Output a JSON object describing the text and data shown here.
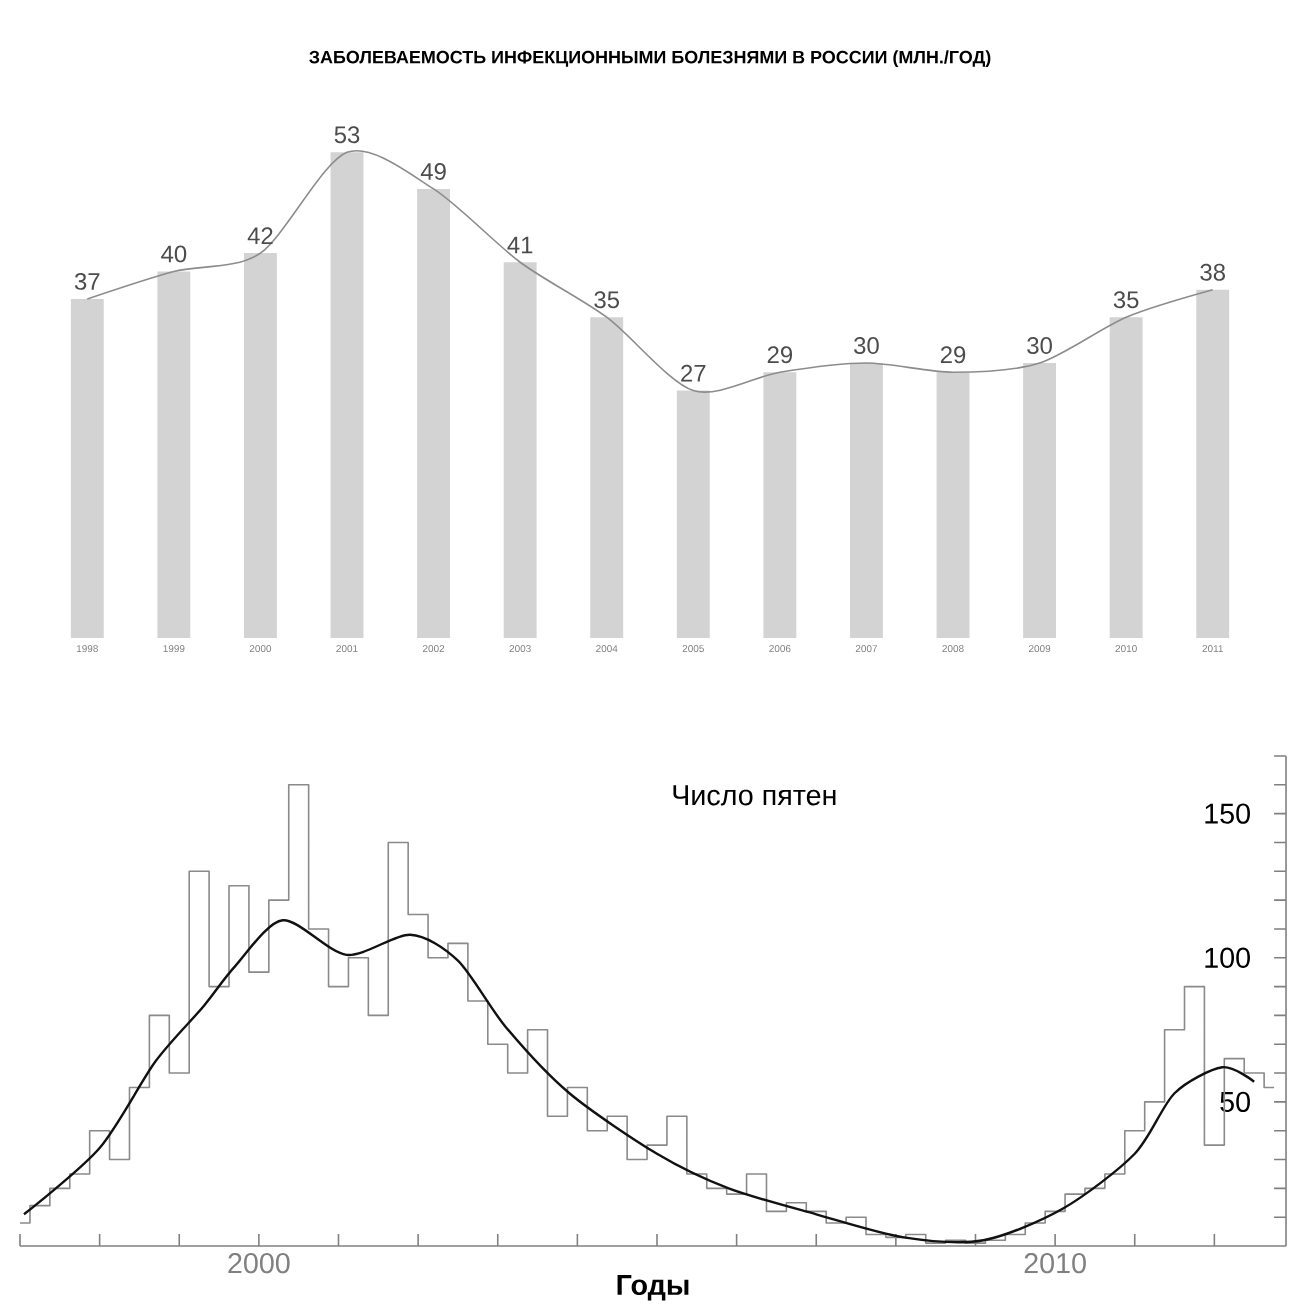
{
  "chart_data": [
    {
      "type": "bar",
      "title": "ЗАБОЛЕВАЕМОСТЬ ИНФЕКЦИОННЫМИ БОЛЕЗНЯМИ В РОССИИ (МЛН./ГОД)",
      "categories": [
        "1998",
        "1999",
        "2000",
        "2001",
        "2002",
        "2003",
        "2004",
        "2005",
        "2006",
        "2007",
        "2008",
        "2009",
        "2010",
        "2011"
      ],
      "series": [
        {
          "type": "bar",
          "color": "#d3d3d3",
          "values": [
            37,
            40,
            42,
            53,
            49,
            41,
            35,
            27,
            29,
            30,
            29,
            30,
            35,
            38
          ],
          "value_labels": [
            "37",
            "40",
            "42",
            "53",
            "49",
            "41",
            "35",
            "27",
            "29",
            "30",
            "29",
            "30",
            "35",
            "38"
          ]
        },
        {
          "type": "line",
          "color": "#8c8c8c",
          "values": [
            37,
            40,
            42,
            53,
            49,
            41,
            35,
            27,
            29,
            30,
            29,
            30,
            35,
            38
          ]
        }
      ]
    },
    {
      "type": "line",
      "title": "Число пятен",
      "xlabel": "Годы",
      "xlim": [
        1997,
        2012.9
      ],
      "ylim": [
        0,
        170
      ],
      "xticks": [
        {
          "value": 1997,
          "label": null
        },
        {
          "value": 1998,
          "label": null
        },
        {
          "value": 1999,
          "label": null
        },
        2000,
        {
          "value": 2001,
          "label": null
        },
        {
          "value": 2002,
          "label": null
        },
        {
          "value": 2003,
          "label": null
        },
        {
          "value": 2004,
          "label": null
        },
        {
          "value": 2005,
          "label": null
        },
        {
          "value": 2006,
          "label": null
        },
        {
          "value": 2007,
          "label": null
        },
        {
          "value": 2008,
          "label": null
        },
        {
          "value": 2009,
          "label": null
        },
        2010,
        {
          "value": 2011,
          "label": null
        },
        {
          "value": 2012,
          "label": null
        }
      ],
      "yticks": [
        {
          "value": 10,
          "label": null
        },
        {
          "value": 20,
          "label": null
        },
        {
          "value": 30,
          "label": null
        },
        {
          "value": 40,
          "label": null
        },
        50,
        {
          "value": 60,
          "label": null
        },
        {
          "value": 70,
          "label": null
        },
        {
          "value": 80,
          "label": null
        },
        {
          "value": 90,
          "label": null
        },
        100,
        {
          "value": 110,
          "label": null
        },
        {
          "value": 120,
          "label": null
        },
        {
          "value": 130,
          "label": null
        },
        {
          "value": 140,
          "label": null
        },
        150,
        {
          "value": 160,
          "label": null
        },
        {
          "value": 170,
          "label": null
        }
      ],
      "series": [
        {
          "type": "step",
          "color": "#8a8a8a",
          "x": [
            1997.0,
            1997.25,
            1997.5,
            1997.75,
            1998.0,
            1998.25,
            1998.5,
            1998.75,
            1999.0,
            1999.25,
            1999.5,
            1999.75,
            2000.0,
            2000.25,
            2000.5,
            2000.75,
            2001.0,
            2001.25,
            2001.5,
            2001.75,
            2002.0,
            2002.25,
            2002.5,
            2002.75,
            2003.0,
            2003.25,
            2003.5,
            2003.75,
            2004.0,
            2004.25,
            2004.5,
            2004.75,
            2005.0,
            2005.25,
            2005.5,
            2005.75,
            2006.0,
            2006.25,
            2006.5,
            2006.75,
            2007.0,
            2007.25,
            2007.5,
            2007.75,
            2008.0,
            2008.25,
            2008.5,
            2008.75,
            2009.0,
            2009.25,
            2009.5,
            2009.75,
            2010.0,
            2010.25,
            2010.5,
            2010.75,
            2011.0,
            2011.25,
            2011.5,
            2011.75,
            2012.0,
            2012.25,
            2012.5,
            2012.75
          ],
          "values": [
            8,
            14,
            20,
            25,
            40,
            30,
            55,
            80,
            60,
            130,
            90,
            125,
            95,
            120,
            160,
            110,
            90,
            100,
            80,
            140,
            115,
            100,
            105,
            85,
            70,
            60,
            75,
            45,
            55,
            40,
            45,
            30,
            35,
            45,
            25,
            20,
            18,
            25,
            12,
            15,
            12,
            8,
            10,
            4,
            3,
            4,
            1,
            2,
            1,
            2,
            4,
            8,
            12,
            18,
            20,
            25,
            40,
            50,
            75,
            90,
            35,
            65,
            60,
            55
          ]
        },
        {
          "type": "line",
          "color": "#111111",
          "x": [
            1997.05,
            1998.0,
            1998.7,
            1999.3,
            1999.7,
            2000.3,
            2001.1,
            2001.9,
            2002.5,
            2003.1,
            2003.9,
            2005.0,
            2005.9,
            2007.0,
            2008.1,
            2009.1,
            2010.1,
            2011.0,
            2011.5,
            2012.1,
            2012.5
          ],
          "values": [
            11,
            34,
            64,
            83,
            97,
            113,
            101,
            108,
            99,
            76,
            53,
            32,
            20,
            11,
            3,
            2,
            13,
            32,
            53,
            62,
            57
          ]
        }
      ]
    }
  ]
}
